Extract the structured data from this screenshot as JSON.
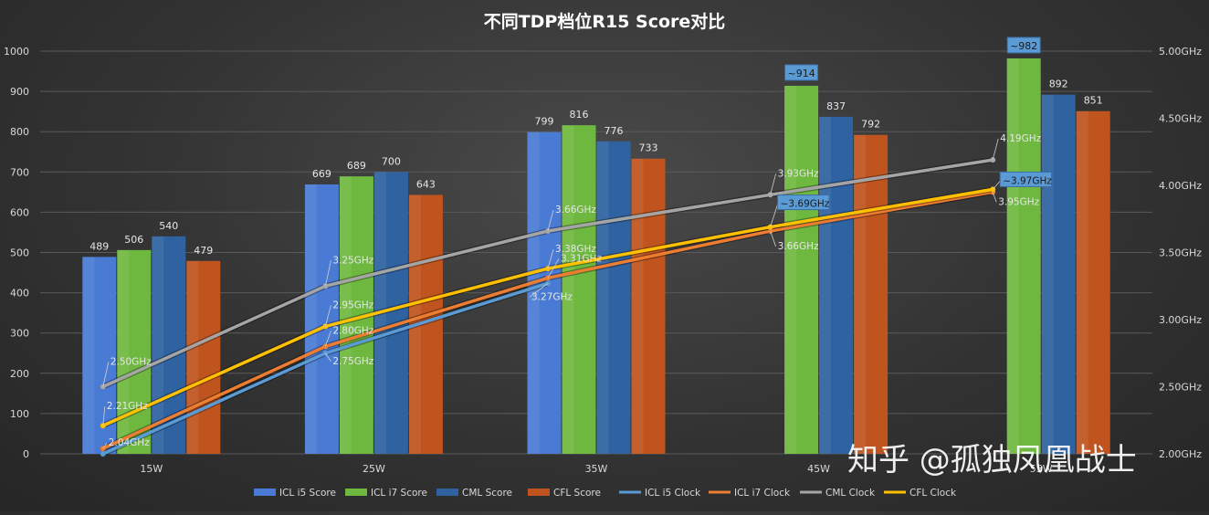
{
  "chart_data": {
    "type": "bar",
    "title": "不同TDP档位R15  Score对比",
    "categories": [
      "15W",
      "25W",
      "35W",
      "45W",
      "55W"
    ],
    "y_left": {
      "ylim": [
        0,
        1000
      ],
      "ticks": [
        "0",
        "100",
        "200",
        "300",
        "400",
        "500",
        "600",
        "700",
        "800",
        "900",
        "1000"
      ]
    },
    "y_right": {
      "ylim": [
        2.0,
        5.0
      ],
      "ticks": [
        "2.00GHz",
        "2.50GHz",
        "3.00GHz",
        "3.50GHz",
        "4.00GHz",
        "4.50GHz",
        "5.00GHz"
      ]
    },
    "grid": true,
    "legend_position": "bottom",
    "bar_series": [
      {
        "name": "ICL i5 Score",
        "color": "#4a7bd4",
        "values": [
          489,
          669,
          799,
          null,
          null
        ],
        "labels": [
          "489",
          "669",
          "799",
          "",
          ""
        ]
      },
      {
        "name": "ICL i7 Score",
        "color": "#6fb83f",
        "values": [
          506,
          689,
          816,
          914,
          982
        ],
        "labels": [
          "506",
          "689",
          "816",
          "~914",
          "~982"
        ]
      },
      {
        "name": "CML Score",
        "color": "#2f62a0",
        "values": [
          540,
          700,
          776,
          837,
          892
        ],
        "labels": [
          "540",
          "700",
          "776",
          "837",
          "892"
        ]
      },
      {
        "name": "CFL Score",
        "color": "#c0541e",
        "values": [
          479,
          643,
          733,
          792,
          851
        ],
        "labels": [
          "479",
          "643",
          "733",
          "792",
          "851"
        ]
      }
    ],
    "line_series": [
      {
        "name": "ICL i5 Clock",
        "color": "#5b9bd5",
        "values": [
          2.0,
          2.75,
          3.27,
          null,
          null
        ],
        "labels": [
          "",
          "2.75GHz",
          "3.27GHz",
          "",
          ""
        ]
      },
      {
        "name": "ICL i7 Clock",
        "color": "#ed7d31",
        "values": [
          2.04,
          2.8,
          3.31,
          3.66,
          3.95
        ],
        "labels": [
          "2.04GHz",
          "2.80GHz",
          "3.31GHz",
          "3.66GHz",
          "3.95GHz"
        ]
      },
      {
        "name": "CML Clock",
        "color": "#a5a5a5",
        "values": [
          2.5,
          3.25,
          3.66,
          3.93,
          4.19
        ],
        "labels": [
          "2.50GHz",
          "3.25GHz",
          "3.66GHz",
          "3.93GHz",
          "4.19GHz"
        ]
      },
      {
        "name": "CFL Clock",
        "color": "#ffc000",
        "values": [
          2.21,
          2.95,
          3.38,
          3.69,
          3.97
        ],
        "labels": [
          "2.21GHz",
          "2.95GHz",
          "3.38GHz",
          "~3.69GHz",
          "~3.97GHz"
        ]
      }
    ],
    "legend": [
      "ICL i5 Score",
      "ICL i7 Score",
      "CML Score",
      "CFL Score",
      "ICL i5 Clock",
      "ICL i7 Clock",
      "CML Clock",
      "CFL Clock"
    ],
    "colors": {
      "highlight_box": "#5b9bd5",
      "grid": "#5a5a5a"
    }
  },
  "watermark": "知乎 @孤独凤凰战士"
}
